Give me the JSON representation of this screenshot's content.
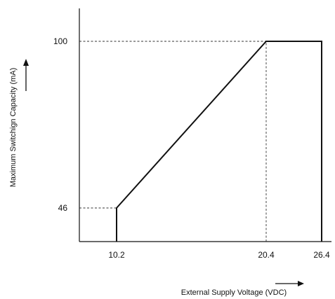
{
  "chart_data": {
    "type": "line",
    "title": "",
    "xlabel": "External Supply Voltage (VDC)",
    "ylabel": "Maximum Switchign Capacity (mA)",
    "x_ticks": [
      "10.2",
      "20.4",
      "26.4"
    ],
    "y_ticks": [
      "46",
      "100"
    ],
    "series": [
      {
        "x": [
          10.2,
          10.2,
          20.4,
          26.4,
          26.4
        ],
        "y": [
          0,
          46,
          100,
          100,
          0
        ]
      }
    ],
    "reference_lines": [
      {
        "from": [
          0,
          46
        ],
        "to": [
          10.2,
          46
        ]
      },
      {
        "from": [
          0,
          100
        ],
        "to": [
          20.4,
          100
        ]
      },
      {
        "from": [
          20.4,
          0
        ],
        "to": [
          20.4,
          100
        ]
      }
    ],
    "grid": false,
    "legend": "none",
    "colors": {
      "line": "#111111",
      "reference": "#333333"
    }
  }
}
